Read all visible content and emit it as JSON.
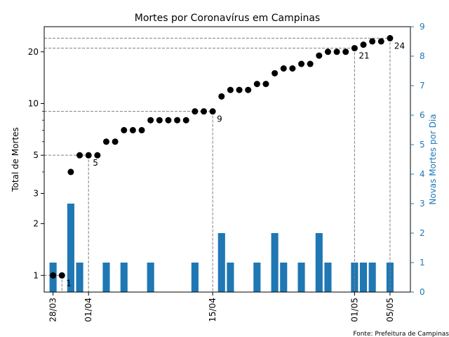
{
  "chart_data": {
    "type": "bar+scatter",
    "title": "Mortes por Coronavírus em Campinas",
    "ylabel_left": "Total de Mortes",
    "ylabel_right": "Novas Mortes por Dia",
    "source": "Fonte: Prefeitura de Campinas",
    "left_axis": {
      "scale": "log",
      "ylim": [
        0.8,
        28
      ],
      "ticks": [
        1,
        2,
        3,
        5,
        10,
        20
      ]
    },
    "right_axis": {
      "ylim": [
        0,
        9
      ],
      "ticks": [
        0,
        1,
        2,
        3,
        4,
        5,
        6,
        7,
        8,
        9
      ]
    },
    "x_ticks": [
      {
        "day": 0,
        "label": "28/03"
      },
      {
        "day": 4,
        "label": "01/04"
      },
      {
        "day": 18,
        "label": "15/04"
      },
      {
        "day": 34,
        "label": "01/05"
      },
      {
        "day": 38,
        "label": "05/05"
      }
    ],
    "series": [
      {
        "name": "Total de Mortes",
        "kind": "scatter",
        "color": "#000000",
        "days": [
          0,
          1,
          2,
          3,
          4,
          5,
          6,
          7,
          8,
          9,
          10,
          11,
          12,
          13,
          14,
          15,
          16,
          17,
          18,
          19,
          20,
          21,
          22,
          23,
          24,
          25,
          26,
          27,
          28,
          29,
          30,
          31,
          32,
          33,
          34,
          35,
          36,
          37,
          38
        ],
        "values": [
          1,
          1,
          4,
          5,
          5,
          5,
          6,
          6,
          7,
          7,
          7,
          8,
          8,
          8,
          8,
          8,
          9,
          9,
          9,
          11,
          12,
          12,
          12,
          13,
          13,
          15,
          16,
          16,
          17,
          17,
          19,
          20,
          20,
          20,
          21,
          22,
          23,
          23,
          24
        ]
      },
      {
        "name": "Novas Mortes por Dia",
        "kind": "bar",
        "color": "#1f77b4",
        "days": [
          0,
          2,
          3,
          6,
          8,
          11,
          16,
          19,
          20,
          23,
          25,
          26,
          28,
          30,
          31,
          34,
          35,
          36,
          38
        ],
        "values": [
          1,
          3,
          1,
          1,
          1,
          1,
          1,
          2,
          1,
          1,
          2,
          1,
          1,
          2,
          1,
          1,
          1,
          1,
          1
        ]
      }
    ],
    "annotations": [
      {
        "day": 1,
        "value": 1,
        "label": "1"
      },
      {
        "day": 4,
        "value": 5,
        "label": "5"
      },
      {
        "day": 18,
        "value": 9,
        "label": "9"
      },
      {
        "day": 34,
        "value": 21,
        "label": "21"
      },
      {
        "day": 38,
        "value": 24,
        "label": "24"
      }
    ],
    "guide_lines_style": "dashed gray",
    "grid": false
  }
}
